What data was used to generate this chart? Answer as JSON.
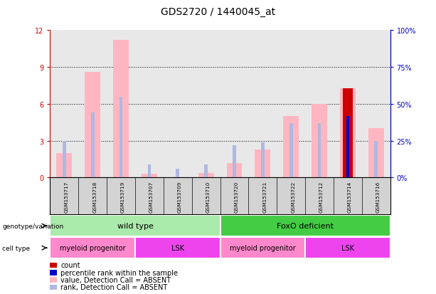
{
  "title": "GDS2720 / 1440045_at",
  "samples": [
    "GSM153717",
    "GSM153718",
    "GSM153719",
    "GSM153707",
    "GSM153709",
    "GSM153710",
    "GSM153720",
    "GSM153721",
    "GSM153722",
    "GSM153712",
    "GSM153714",
    "GSM153716"
  ],
  "value_bars": [
    2.0,
    8.6,
    11.2,
    0.3,
    0.05,
    0.35,
    1.2,
    2.3,
    5.0,
    6.0,
    7.3,
    4.0
  ],
  "rank_bars_pct": [
    25,
    44,
    55,
    9,
    6,
    9,
    22,
    24,
    37,
    37,
    42,
    25
  ],
  "count_val": [
    0,
    0,
    0,
    0,
    0,
    0,
    0,
    0,
    0,
    0,
    7.3,
    0
  ],
  "count_rank_pct": [
    0,
    0,
    0,
    0,
    0,
    0,
    0,
    0,
    0,
    0,
    42,
    0
  ],
  "ylim_left": [
    0,
    12
  ],
  "ylim_right": [
    0,
    100
  ],
  "yticks_left": [
    0,
    3,
    6,
    9,
    12
  ],
  "yticks_right": [
    0,
    25,
    50,
    75,
    100
  ],
  "ytick_labels_right": [
    "0%",
    "25%",
    "50%",
    "75%",
    "100%"
  ],
  "grid_dotted_at": [
    3,
    6,
    9
  ],
  "genotype_groups": [
    {
      "label": "wild type",
      "start": 0,
      "end": 6,
      "color": "#aaeaaa"
    },
    {
      "label": "FoxO deficient",
      "start": 6,
      "end": 12,
      "color": "#44cc44"
    }
  ],
  "cell_type_groups": [
    {
      "label": "myeloid progenitor",
      "start": 0,
      "end": 3,
      "color": "#ff88cc"
    },
    {
      "label": "LSK",
      "start": 3,
      "end": 6,
      "color": "#ee44ee"
    },
    {
      "label": "myeloid progenitor",
      "start": 6,
      "end": 9,
      "color": "#ff88cc"
    },
    {
      "label": "LSK",
      "start": 9,
      "end": 12,
      "color": "#ee44ee"
    }
  ],
  "value_bar_color": "#ffb6c1",
  "rank_bar_color": "#b0b8e0",
  "count_bar_color": "#cc0000",
  "count_rank_color": "#0000cc",
  "left_axis_color": "#cc0000",
  "right_axis_color": "#0000cc",
  "chart_bg": "#e8e8e8",
  "xtick_bg": "#d3d3d3",
  "legend_items": [
    {
      "label": "count",
      "color": "#cc0000"
    },
    {
      "label": "percentile rank within the sample",
      "color": "#0000cc"
    },
    {
      "label": "value, Detection Call = ABSENT",
      "color": "#ffb6c1"
    },
    {
      "label": "rank, Detection Call = ABSENT",
      "color": "#b0b8e0"
    }
  ]
}
